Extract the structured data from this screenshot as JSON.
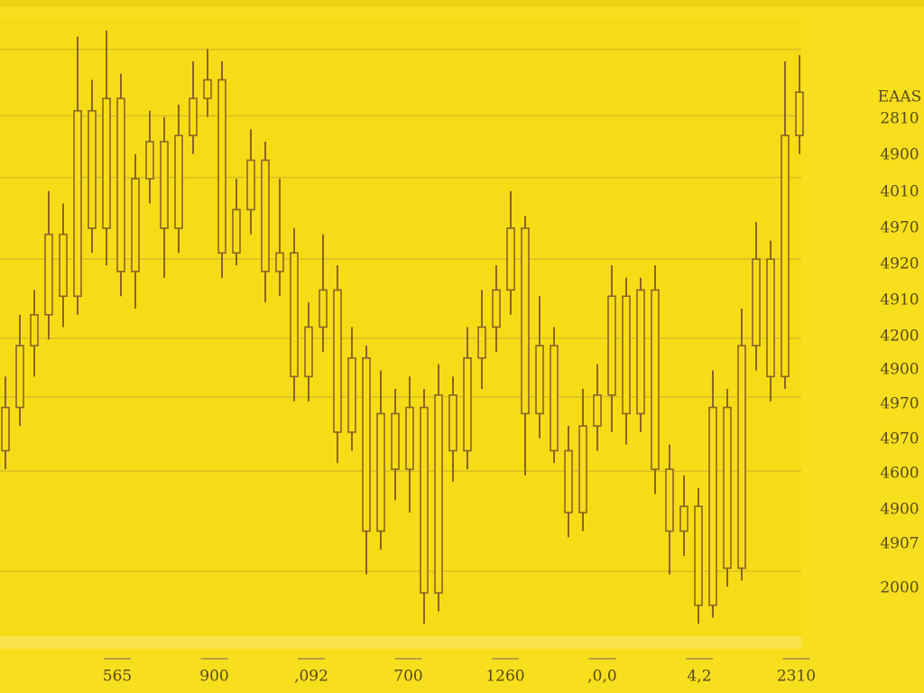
{
  "chart_data": {
    "type": "candlestick",
    "open": [
      30,
      37,
      47,
      52,
      65,
      55,
      85,
      66,
      87,
      59,
      74,
      80,
      66,
      81,
      87,
      90,
      62,
      69,
      77,
      59,
      62,
      42,
      50,
      56,
      33,
      45,
      17,
      36,
      27,
      37,
      7,
      39,
      30,
      45,
      50,
      56,
      66,
      36,
      47,
      30,
      20,
      34,
      39,
      55,
      36,
      56,
      27,
      17,
      21,
      5,
      37,
      11,
      47,
      61,
      42,
      81
    ],
    "high": [
      42,
      52,
      56,
      72,
      70,
      97,
      90,
      98,
      91,
      78,
      85,
      84,
      86,
      93,
      95,
      93,
      74,
      82,
      80,
      74,
      66,
      54,
      65,
      60,
      50,
      47,
      43,
      40,
      42,
      40,
      44,
      42,
      50,
      56,
      60,
      72,
      68,
      55,
      50,
      34,
      40,
      44,
      60,
      58,
      58,
      60,
      31,
      26,
      24,
      43,
      40,
      53,
      67,
      64,
      93,
      94
    ],
    "low": [
      27,
      34,
      42,
      48,
      50,
      52,
      62,
      60,
      55,
      53,
      70,
      58,
      62,
      78,
      84,
      58,
      60,
      65,
      54,
      55,
      38,
      38,
      46,
      28,
      30,
      10,
      14,
      22,
      20,
      2,
      4,
      25,
      27,
      40,
      46,
      52,
      26,
      32,
      28,
      16,
      17,
      30,
      33,
      31,
      33,
      23,
      10,
      13,
      2,
      3,
      8,
      9,
      43,
      38,
      40,
      78
    ],
    "close": [
      37,
      47,
      52,
      65,
      55,
      85,
      66,
      87,
      59,
      74,
      80,
      66,
      81,
      87,
      90,
      62,
      69,
      77,
      59,
      62,
      42,
      50,
      56,
      33,
      45,
      17,
      36,
      27,
      37,
      7,
      39,
      30,
      45,
      50,
      56,
      66,
      36,
      47,
      30,
      20,
      34,
      39,
      55,
      36,
      56,
      27,
      17,
      21,
      5,
      37,
      11,
      47,
      61,
      42,
      81,
      88
    ],
    "color": "#8a6424",
    "ylim": [
      0,
      100
    ],
    "gridlines": [
      94.9,
      84.2,
      74.2,
      61.0,
      48.2,
      38.7,
      26.7,
      10.5
    ],
    "side_labels": [
      "EAAS",
      "2810",
      "4900",
      "4010",
      "4970",
      "4920",
      "4910",
      "4200",
      "4900",
      "4970",
      "4970",
      "4600",
      "4900",
      "4907",
      "2000"
    ],
    "x_labels": [
      "565",
      "900",
      ",092",
      "700",
      "1260",
      ",0,0",
      "4,2",
      "2310"
    ]
  }
}
